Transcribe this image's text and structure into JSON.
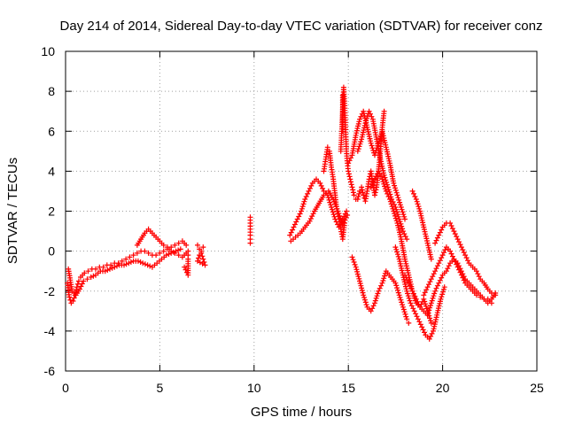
{
  "chart_data": {
    "type": "scatter",
    "title": "Day 214 of 2014, Sidereal Day-to-day VTEC variation (SDTVAR) for receiver conz",
    "xlabel": "GPS time / hours",
    "ylabel": "SDTVAR / TECUs",
    "xlim": [
      0,
      25
    ],
    "ylim": [
      -6,
      10
    ],
    "xticks": [
      "0",
      "5",
      "10",
      "15",
      "20",
      "25"
    ],
    "yticks": [
      "-6",
      "-4",
      "-2",
      "0",
      "2",
      "4",
      "6",
      "8",
      "10"
    ],
    "grid": true,
    "marker": "+",
    "color": "#ff0000",
    "series": [
      {
        "name": "SDTVAR",
        "x": [
          0.1,
          0.2,
          0.3,
          0.4,
          0.5,
          0.6,
          0.7,
          0.8,
          0.9,
          1.0,
          1.2,
          1.4,
          1.6,
          1.8,
          2.0,
          2.2,
          2.4,
          2.6,
          2.8,
          3.0,
          3.2,
          3.4,
          3.6,
          3.8,
          4.0,
          4.2,
          4.4,
          4.6,
          4.8,
          5.0,
          5.2,
          5.4,
          5.6,
          5.8,
          6.0,
          6.2,
          6.4,
          0.15,
          0.35,
          0.55,
          0.75,
          0.95,
          1.15,
          1.35,
          1.6,
          1.85,
          2.1,
          2.35,
          2.6,
          2.85,
          3.1,
          3.35,
          3.6,
          3.85,
          4.1,
          4.35,
          4.6,
          4.85,
          5.1,
          5.35,
          5.6,
          5.85,
          6.1,
          3.8,
          4.0,
          4.2,
          4.4,
          4.6,
          4.8,
          5.0,
          5.2,
          5.4,
          5.6,
          5.8,
          6.0,
          6.2,
          6.5,
          6.5,
          6.5,
          6.5,
          6.3,
          7.0,
          7.1,
          7.2,
          7.3,
          7.4,
          7.0,
          7.1,
          7.2,
          7.3,
          9.8,
          9.8,
          9.8,
          9.8,
          9.8,
          9.8,
          11.9,
          12.1,
          12.3,
          12.5,
          12.7,
          12.9,
          13.1,
          13.3,
          13.5,
          13.7,
          13.9,
          14.1,
          14.3,
          14.5,
          14.7,
          14.9,
          11.95,
          12.2,
          12.45,
          12.7,
          12.95,
          13.2,
          13.45,
          13.7,
          13.95,
          14.2,
          14.45,
          14.7,
          14.95,
          13.7,
          13.8,
          13.9,
          14.0,
          14.1,
          14.2,
          14.3,
          14.4,
          14.5,
          14.6,
          14.7,
          14.8,
          14.6,
          14.65,
          14.7,
          14.75,
          14.8,
          14.85,
          14.9,
          14.95,
          15.0,
          15.1,
          15.2,
          15.3,
          15.4,
          15.5,
          15.6,
          15.7,
          15.8,
          15.9,
          16.0,
          16.1,
          16.2,
          16.3,
          16.4,
          16.5,
          16.6,
          16.7,
          16.8,
          16.9,
          15.0,
          15.2,
          15.4,
          15.6,
          15.8,
          16.0,
          16.2,
          16.4,
          16.6,
          16.8,
          17.0,
          17.2,
          17.4,
          17.6,
          17.8,
          18.0,
          15.5,
          15.7,
          15.9,
          16.1,
          16.3,
          16.5,
          16.7,
          16.9,
          17.1,
          17.3,
          17.5,
          17.7,
          17.9,
          18.1,
          16.2,
          16.4,
          16.6,
          16.8,
          17.0,
          17.2,
          17.4,
          17.6,
          17.8,
          18.0,
          18.2,
          18.4,
          18.6,
          18.8,
          19.0,
          19.2,
          19.4,
          17.5,
          17.7,
          17.9,
          18.1,
          18.3,
          18.5,
          18.7,
          18.9,
          19.1,
          19.3,
          19.5,
          19.7,
          19.9,
          20.1,
          18.0,
          18.2,
          18.4,
          18.6,
          18.8,
          19.0,
          19.2,
          19.4,
          19.6,
          19.8,
          20.0,
          20.2,
          20.4,
          20.6,
          20.8,
          21.0,
          21.2,
          21.4,
          21.6,
          21.8,
          22.0,
          22.2,
          22.4,
          22.6,
          22.8,
          19.0,
          19.2,
          19.4,
          19.6,
          19.8,
          20.0,
          20.2,
          20.4,
          20.6,
          20.8,
          21.0,
          21.2,
          21.4,
          21.6,
          21.8,
          22.0,
          22.2,
          22.4,
          22.6,
          19.6,
          19.8,
          20.0,
          20.2,
          20.4,
          20.6,
          20.8,
          21.0,
          21.2,
          21.4,
          21.6,
          21.8,
          22.0,
          22.2,
          22.4,
          22.6,
          22.8,
          18.4,
          18.6,
          18.8,
          19.0,
          19.2,
          19.4,
          14.7,
          14.7,
          14.7,
          14.7,
          15.2,
          15.4,
          15.6,
          15.8,
          16.0,
          16.2,
          16.4,
          16.6,
          16.8,
          17.0,
          17.5,
          17.7,
          17.9,
          18.1,
          18.2
        ],
        "y": [
          -1.6,
          -2.3,
          -2.6,
          -2.5,
          -2.2,
          -1.8,
          -1.5,
          -1.3,
          -1.2,
          -1.1,
          -1.0,
          -0.9,
          -0.9,
          -0.8,
          -0.8,
          -0.7,
          -0.7,
          -0.6,
          -0.6,
          -0.5,
          -0.4,
          -0.3,
          -0.2,
          -0.1,
          0.0,
          0.0,
          -0.1,
          -0.2,
          -0.2,
          -0.1,
          0.0,
          0.1,
          0.2,
          0.3,
          0.4,
          0.5,
          0.3,
          -0.9,
          -2.0,
          -2.2,
          -1.9,
          -1.5,
          -1.4,
          -1.3,
          -1.2,
          -1.0,
          -1.0,
          -0.9,
          -0.8,
          -0.7,
          -0.7,
          -0.6,
          -0.5,
          -0.5,
          -0.6,
          -0.7,
          -0.8,
          -0.6,
          -0.4,
          -0.2,
          -0.1,
          0.0,
          0.1,
          0.3,
          0.6,
          0.9,
          1.1,
          0.9,
          0.7,
          0.5,
          0.3,
          0.2,
          0.0,
          -0.1,
          -0.2,
          -0.3,
          0.0,
          -0.2,
          -0.4,
          -1.2,
          -0.8,
          0.3,
          0.1,
          -0.1,
          -0.4,
          -0.7,
          -0.5,
          -0.2,
          0.0,
          0.2,
          1.7,
          1.4,
          1.1,
          0.8,
          0.6,
          0.4,
          0.8,
          1.2,
          1.6,
          2.0,
          2.6,
          3.0,
          3.4,
          3.6,
          3.4,
          3.0,
          2.8,
          2.2,
          1.6,
          1.2,
          1.6,
          2.0,
          0.5,
          0.7,
          0.9,
          1.2,
          1.5,
          2.0,
          2.4,
          2.8,
          3.0,
          2.6,
          2.0,
          1.3,
          1.8,
          4.0,
          4.6,
          5.2,
          5.0,
          4.2,
          3.6,
          2.8,
          2.0,
          1.6,
          1.1,
          0.6,
          1.4,
          5.0,
          6.0,
          7.0,
          8.2,
          7.4,
          6.2,
          5.0,
          4.4,
          4.0,
          3.6,
          3.2,
          2.8,
          2.6,
          2.6,
          3.0,
          3.2,
          2.8,
          2.5,
          3.0,
          3.6,
          4.0,
          3.4,
          2.8,
          3.2,
          4.0,
          5.0,
          6.2,
          7.0,
          4.4,
          4.8,
          5.8,
          6.6,
          7.0,
          6.2,
          5.4,
          4.8,
          5.4,
          6.0,
          5.2,
          4.4,
          3.4,
          2.8,
          2.2,
          1.6,
          5.0,
          5.6,
          6.4,
          7.0,
          6.6,
          5.6,
          4.6,
          3.8,
          3.2,
          2.6,
          2.2,
          1.6,
          1.0,
          0.6,
          3.2,
          3.6,
          4.0,
          3.6,
          3.0,
          2.6,
          2.0,
          1.4,
          0.6,
          -0.4,
          -1.2,
          -2.0,
          -2.6,
          -2.8,
          -2.4,
          -3.0,
          -3.6,
          0.2,
          -0.4,
          -1.2,
          -2.0,
          -2.6,
          -3.0,
          -3.4,
          -3.8,
          -4.2,
          -4.4,
          -4.0,
          -3.2,
          -2.4,
          -1.8,
          -1.2,
          -1.6,
          -2.0,
          -2.4,
          -2.8,
          -3.0,
          -3.2,
          -2.6,
          -2.0,
          -1.6,
          -1.2,
          -1.0,
          -0.6,
          -0.4,
          -0.6,
          -1.0,
          -1.4,
          -1.6,
          -1.8,
          -2.0,
          -2.2,
          -2.4,
          -2.6,
          -2.4,
          -2.1,
          -2.2,
          -1.8,
          -1.4,
          -1.0,
          -0.6,
          -0.2,
          0.2,
          0.0,
          -0.4,
          -0.8,
          -1.2,
          -1.6,
          -1.8,
          -2.0,
          -2.2,
          -2.3,
          -2.4,
          -2.4,
          -2.6,
          0.4,
          0.8,
          1.2,
          1.4,
          1.4,
          1.0,
          0.6,
          0.2,
          -0.2,
          -0.6,
          -0.8,
          -1.0,
          -1.4,
          -1.6,
          -1.9,
          -2.1,
          -2.2,
          3.0,
          2.6,
          2.0,
          1.2,
          0.4,
          -0.4,
          7.8,
          7.2,
          6.6,
          6.0,
          -0.3,
          -0.8,
          -1.5,
          -2.2,
          -2.8,
          -3.0,
          -2.6,
          -2.0,
          -1.6,
          -1.0,
          -1.6,
          -2.2,
          -2.8,
          -3.4,
          -3.6
        ]
      }
    ]
  }
}
